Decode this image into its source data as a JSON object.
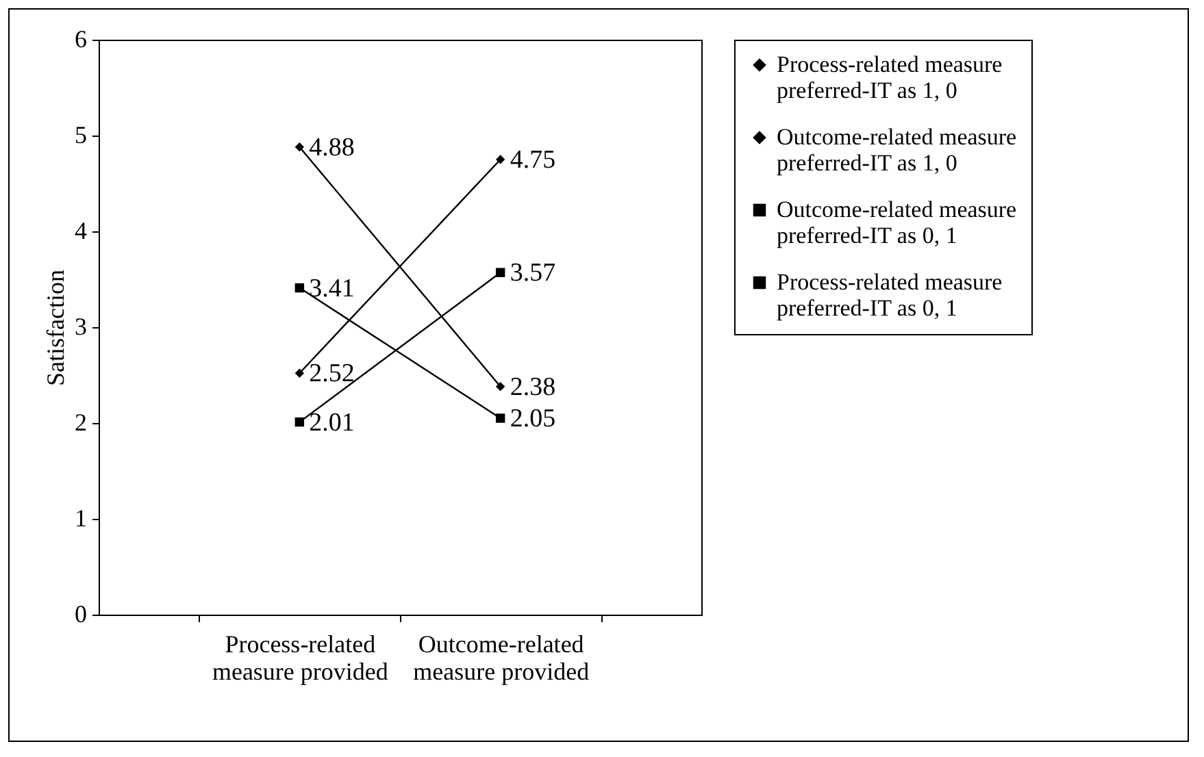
{
  "chart_data": {
    "type": "line",
    "ylabel": "Satisfaction",
    "categories": [
      "Process-related measure provided",
      "Outcome-related measure provided"
    ],
    "series": [
      {
        "name": "Process-related measure preferred-IT as 1, 0",
        "color": "#000000",
        "marker": "diamond",
        "values": [
          4.88,
          2.38
        ]
      },
      {
        "name": "Outcome-related measure preferred-IT as 1, 0",
        "color": "#000000",
        "marker": "diamond",
        "values": [
          2.52,
          4.75
        ]
      },
      {
        "name": "Outcome-related measure preferred-IT as 0, 1",
        "color": "#000000",
        "marker": "square",
        "values": [
          2.01,
          3.57
        ]
      },
      {
        "name": "Process-related measure preferred-IT as 0, 1",
        "color": "#000000",
        "marker": "square",
        "values": [
          3.41,
          2.05
        ]
      }
    ],
    "ylim": [
      0,
      6
    ],
    "yticks": [
      0,
      1,
      2,
      3,
      4,
      5,
      6
    ],
    "grid": false,
    "legend": "right",
    "data_labels": true,
    "line_style": "solid"
  }
}
